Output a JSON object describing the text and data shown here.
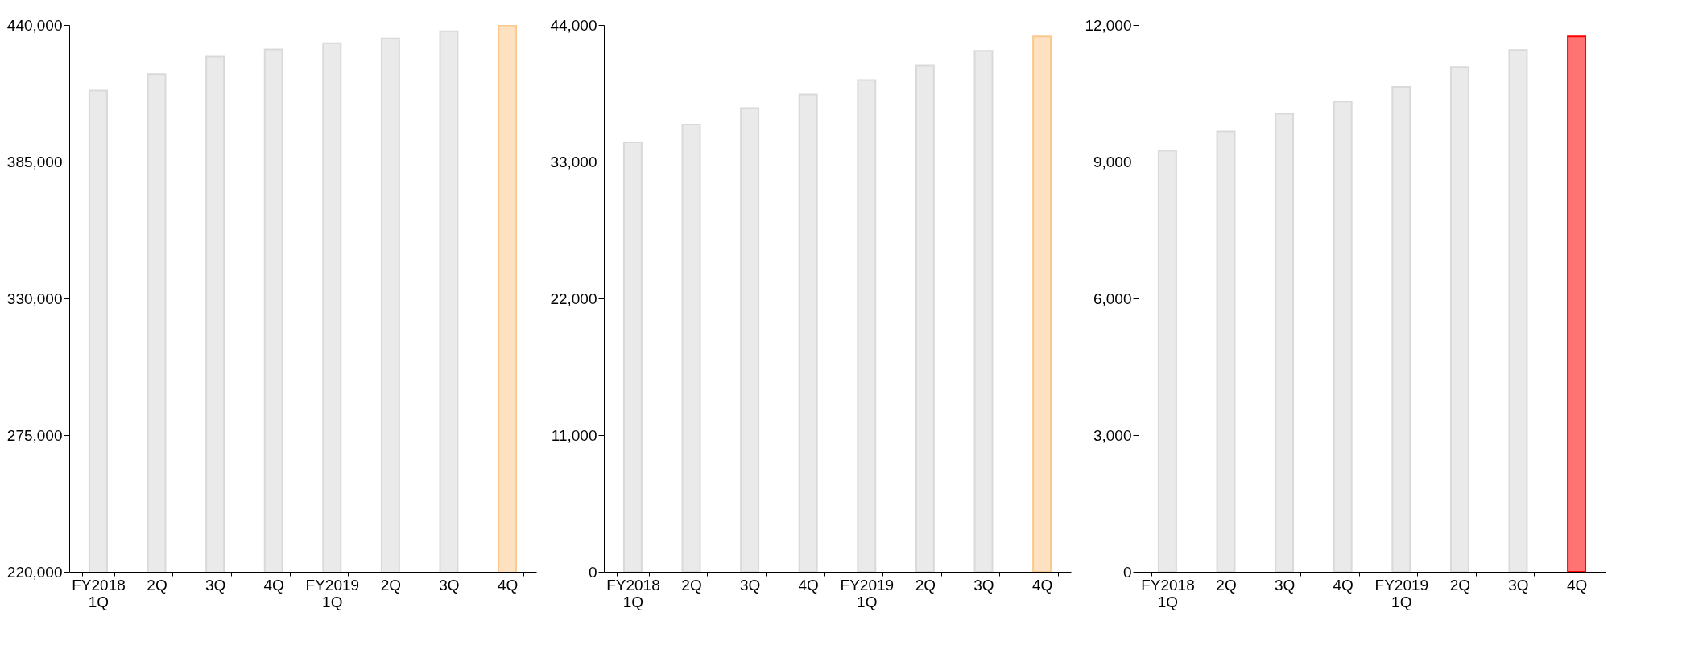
{
  "chart_data": [
    {
      "type": "bar",
      "categories": [
        "FY2018\n1Q",
        "2Q",
        "3Q",
        "4Q",
        "FY2019\n1Q",
        "2Q",
        "3Q",
        "4Q"
      ],
      "values": [
        413600,
        420200,
        427200,
        430100,
        432600,
        434600,
        437500,
        439800
      ],
      "colors": [
        "#d9d9d9",
        "#d9d9d9",
        "#d9d9d9",
        "#d9d9d9",
        "#d9d9d9",
        "#d9d9d9",
        "#d9d9d9",
        "#fbc98e"
      ],
      "ylim": [
        220000,
        440000
      ],
      "yticks": [
        {
          "value": 220000,
          "label": "220,000"
        },
        {
          "value": 275000,
          "label": "275,000"
        },
        {
          "value": 330000,
          "label": "330,000"
        },
        {
          "value": 385000,
          "label": "385,000"
        },
        {
          "value": 440000,
          "label": "440,000"
        }
      ]
    },
    {
      "type": "bar",
      "categories": [
        "FY2018\n1Q",
        "2Q",
        "3Q",
        "4Q",
        "FY2019\n1Q",
        "2Q",
        "3Q",
        "4Q"
      ],
      "values": [
        34550,
        35970,
        37310,
        38400,
        39570,
        40740,
        41910,
        43080
      ],
      "colors": [
        "#d9d9d9",
        "#d9d9d9",
        "#d9d9d9",
        "#d9d9d9",
        "#d9d9d9",
        "#d9d9d9",
        "#d9d9d9",
        "#fbc98e"
      ],
      "ylim": [
        0,
        44000
      ],
      "yticks": [
        0,
        {
          "value": 11000,
          "label": "11,000"
        },
        {
          "value": 22000,
          "label": "22,000"
        },
        {
          "value": 33000,
          "label": "33,000"
        },
        {
          "value": 44000,
          "label": "44,000"
        }
      ]
    },
    {
      "type": "bar",
      "categories": [
        "FY2018\n1Q",
        "2Q",
        "3Q",
        "4Q",
        "FY2019\n1Q",
        "2Q",
        "3Q",
        "4Q"
      ],
      "values": [
        9240,
        9660,
        10050,
        10320,
        10640,
        11080,
        11450,
        11750
      ],
      "colors": [
        "#d9d9d9",
        "#d9d9d9",
        "#d9d9d9",
        "#d9d9d9",
        "#d9d9d9",
        "#d9d9d9",
        "#d9d9d9",
        "#ff0000"
      ],
      "ylim": [
        0,
        12000
      ],
      "yticks": [
        0,
        {
          "value": 3000,
          "label": "3,000"
        },
        {
          "value": 6000,
          "label": "6,000"
        },
        {
          "value": 9000,
          "label": "9,000"
        },
        {
          "value": 12000,
          "label": "12,000"
        }
      ]
    }
  ]
}
